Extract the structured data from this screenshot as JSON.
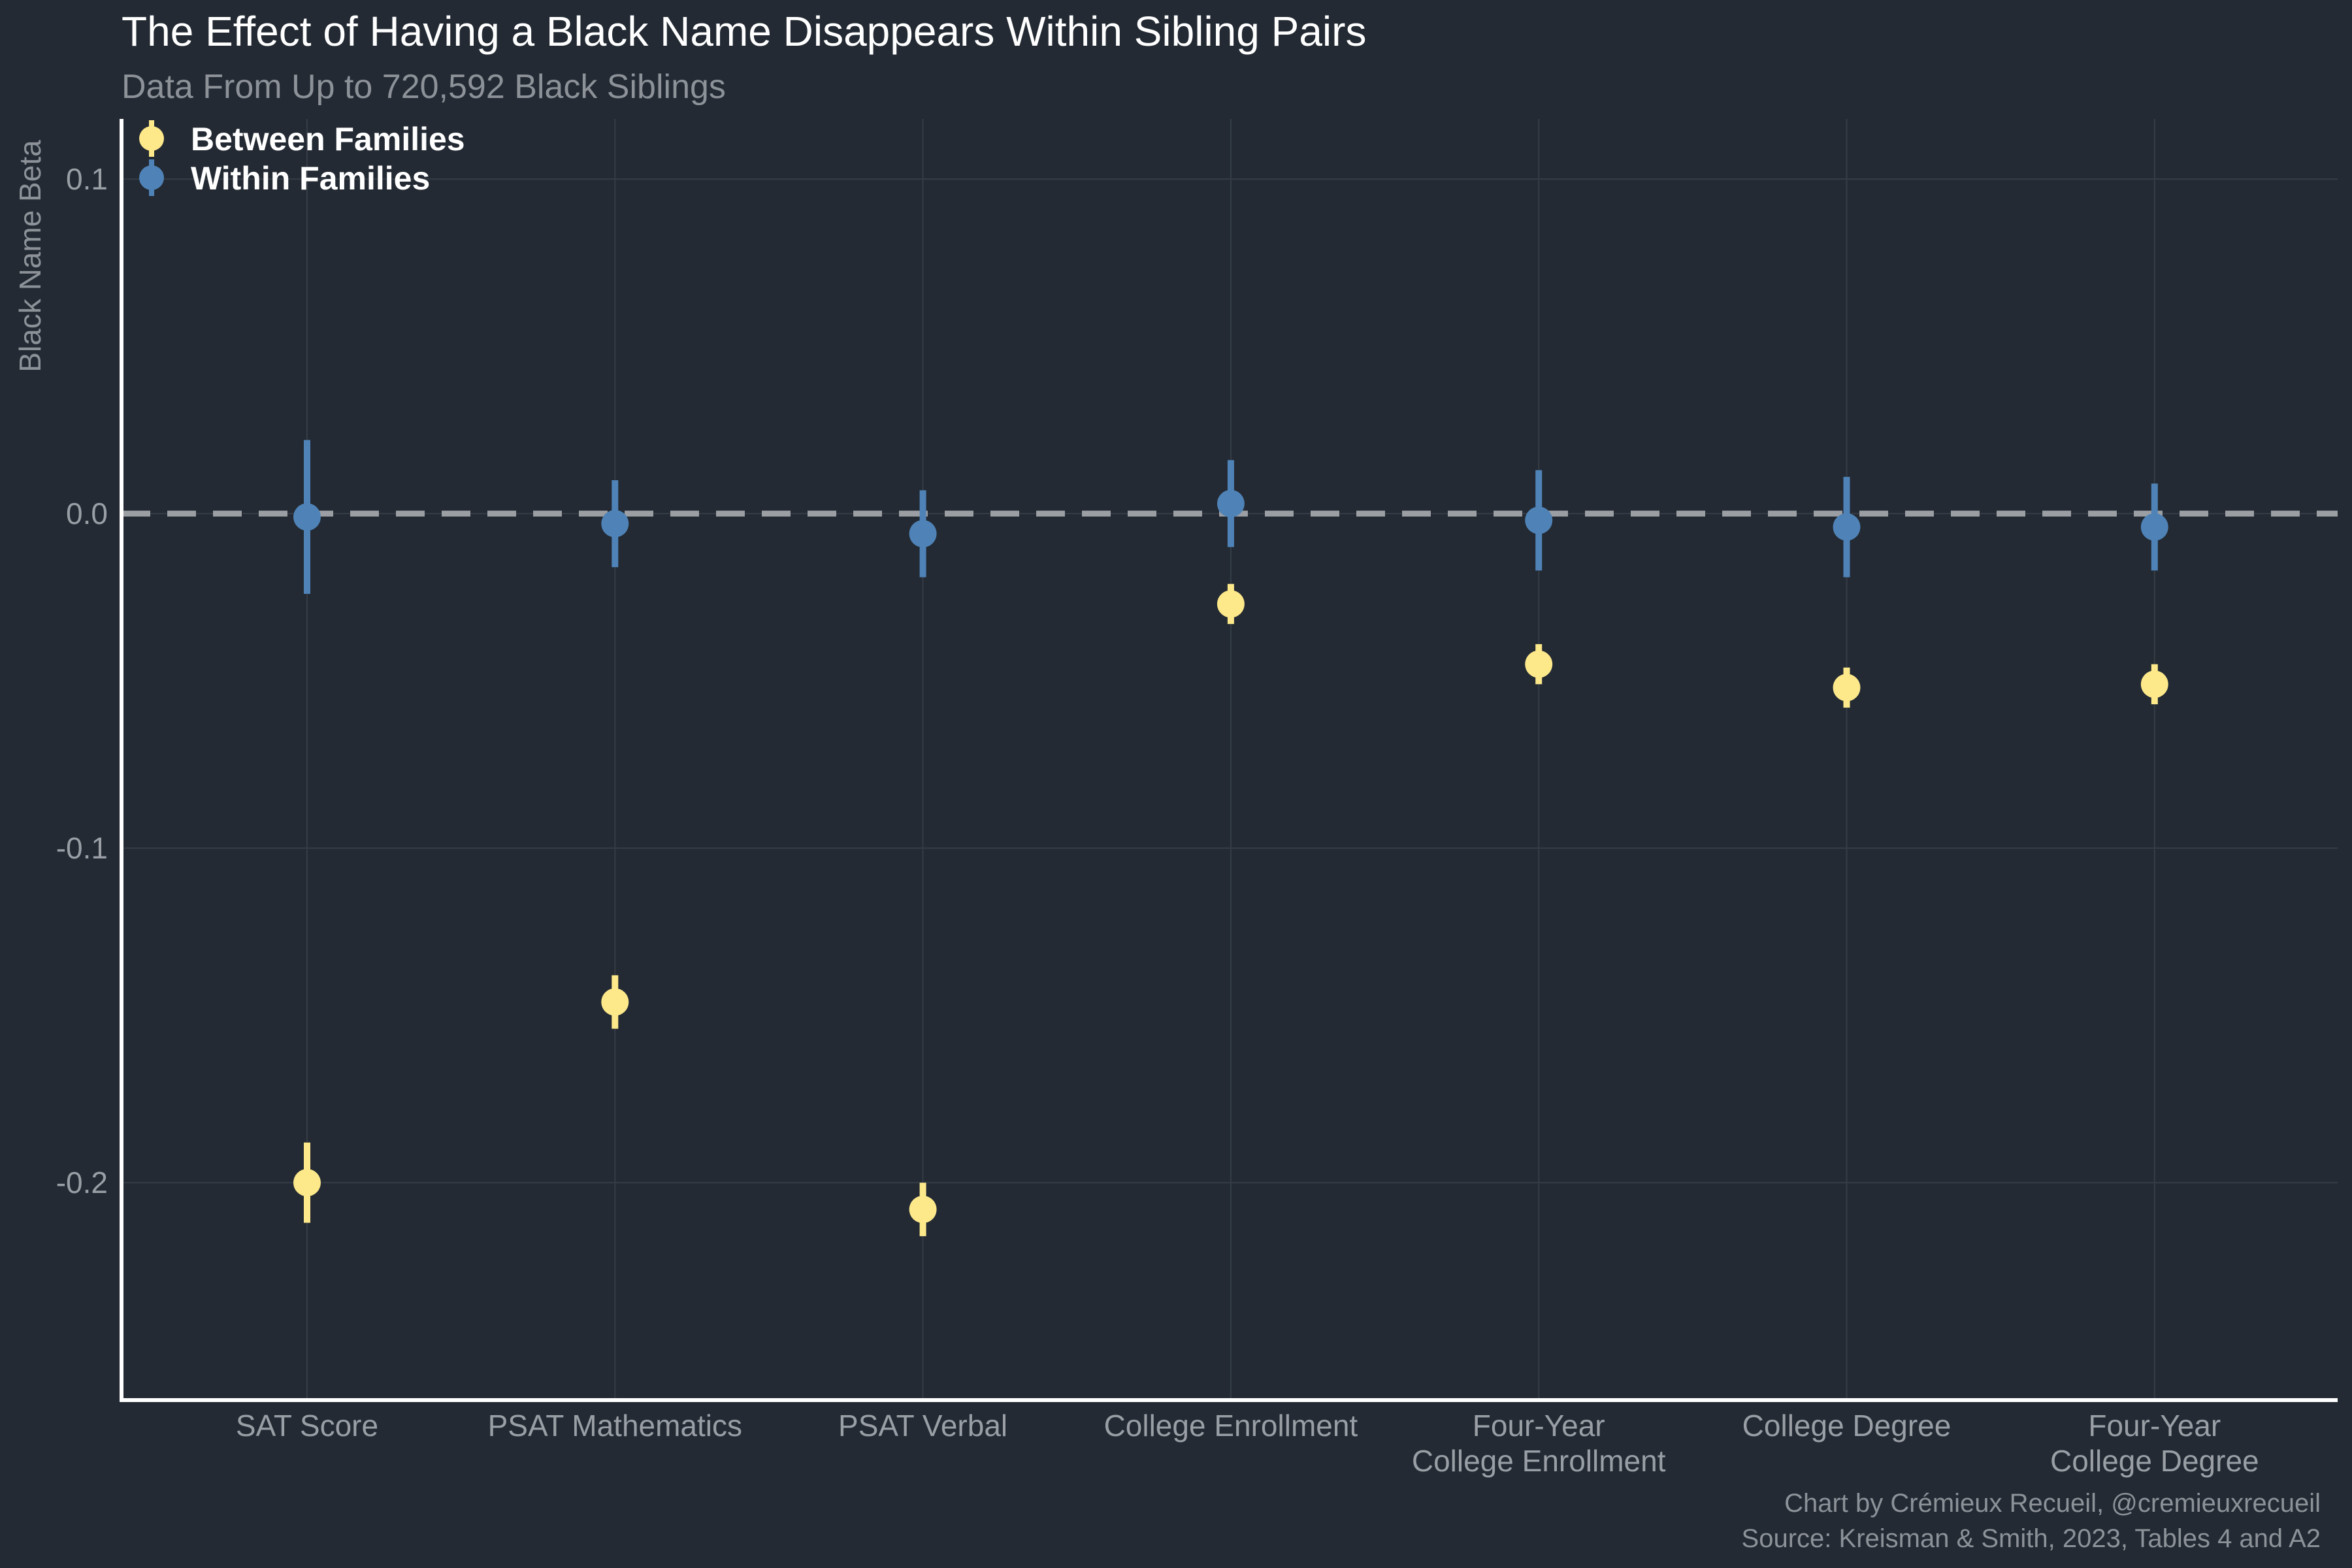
{
  "chart_data": {
    "type": "scatter",
    "title": "The Effect of Having a Black Name Disappears Within Sibling Pairs",
    "subtitle": "Data From Up to 720,592 Black Siblings",
    "ylabel": "Black Name Beta",
    "xlabel": "",
    "ylim": [
      -0.265,
      0.118
    ],
    "yticks": [
      0.1,
      0.0,
      -0.1,
      -0.2
    ],
    "ytick_labels": [
      "0.1",
      "0.0",
      "-0.1",
      "-0.2"
    ],
    "reference_line": 0.0,
    "grid": true,
    "legend_position": "top-left",
    "categories": [
      [
        "SAT Score"
      ],
      [
        "PSAT Mathematics"
      ],
      [
        "PSAT Verbal"
      ],
      [
        "College Enrollment"
      ],
      [
        "Four-Year",
        "College Enrollment"
      ],
      [
        "College Degree"
      ],
      [
        "Four-Year",
        "College Degree"
      ]
    ],
    "series": [
      {
        "name": "Between Families",
        "color": "#fde88a",
        "values": [
          -0.2,
          -0.146,
          -0.208,
          -0.027,
          -0.045,
          -0.052,
          -0.051
        ],
        "lower": [
          -0.212,
          -0.154,
          -0.216,
          -0.033,
          -0.051,
          -0.058,
          -0.057
        ],
        "upper": [
          -0.188,
          -0.138,
          -0.2,
          -0.021,
          -0.039,
          -0.046,
          -0.045
        ]
      },
      {
        "name": "Within Families",
        "color": "#4f83b7",
        "values": [
          -0.001,
          -0.003,
          -0.006,
          0.003,
          -0.002,
          -0.004,
          -0.004
        ],
        "lower": [
          -0.024,
          -0.016,
          -0.019,
          -0.01,
          -0.017,
          -0.019,
          -0.017
        ],
        "upper": [
          0.022,
          0.01,
          0.007,
          0.016,
          0.013,
          0.011,
          0.009
        ]
      }
    ]
  },
  "caption": {
    "credit": "Chart by Crémieux Recueil, @cremieuxrecueil",
    "source": "Source: Kreisman & Smith, 2023, Tables 4 and A2"
  },
  "colors": {
    "background": "#232a33",
    "grid": "#353c46",
    "axis": "#ffffff",
    "reference_line": "#9b9ea3"
  }
}
